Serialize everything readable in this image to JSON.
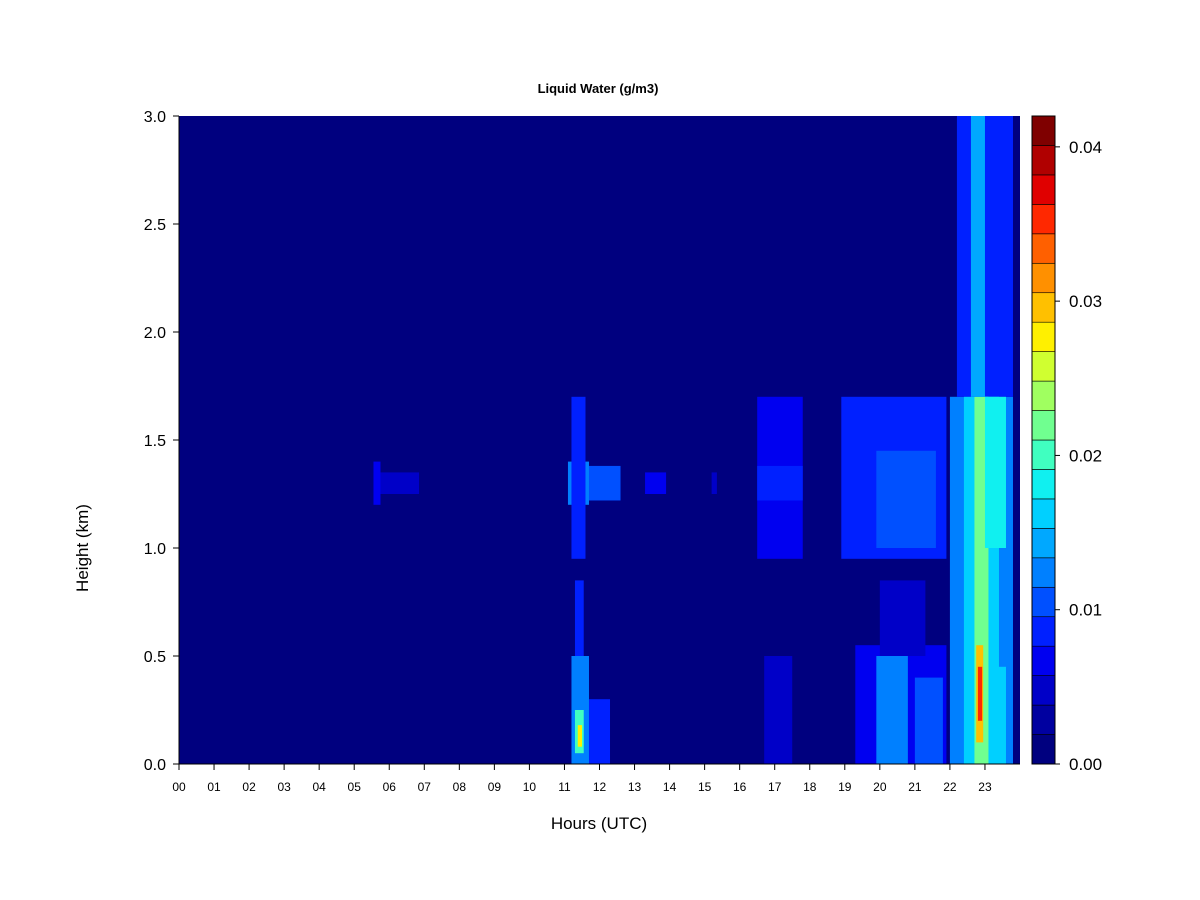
{
  "chart_data": {
    "type": "heatmap",
    "title": "Liquid Water (g/m3)",
    "xlabel": "Hours (UTC)",
    "ylabel": "Height (km)",
    "xlim": [
      0,
      24
    ],
    "ylim": [
      0,
      3.0
    ],
    "x_ticks": [
      "00",
      "01",
      "02",
      "03",
      "04",
      "05",
      "06",
      "07",
      "08",
      "09",
      "10",
      "11",
      "12",
      "13",
      "14",
      "15",
      "16",
      "17",
      "18",
      "19",
      "20",
      "21",
      "22",
      "23"
    ],
    "y_ticks": [
      "0.0",
      "0.5",
      "1.0",
      "1.5",
      "2.0",
      "2.5",
      "3.0"
    ],
    "colorbar": {
      "min": 0.0,
      "max": 0.042,
      "levels": 21,
      "ticks": [
        "0.00",
        "0.01",
        "0.02",
        "0.03",
        "0.04"
      ],
      "colors": [
        "#00007F",
        "#0000A0",
        "#0000C8",
        "#0000F0",
        "#0020FF",
        "#0050FF",
        "#0080FF",
        "#00A8FF",
        "#00D0FF",
        "#10F0F0",
        "#40FFC0",
        "#70FF90",
        "#A0FF60",
        "#D0FF30",
        "#FFF000",
        "#FFC000",
        "#FF9000",
        "#FF6000",
        "#FF2800",
        "#E00000",
        "#B00000",
        "#7F0000"
      ]
    },
    "background_value": 0.0,
    "patches": [
      {
        "x": [
          5.55,
          5.75
        ],
        "y": [
          1.2,
          1.4
        ],
        "value": 0.006
      },
      {
        "x": [
          5.75,
          6.85
        ],
        "y": [
          1.25,
          1.35
        ],
        "value": 0.004
      },
      {
        "x": [
          11.1,
          11.7
        ],
        "y": [
          1.2,
          1.4
        ],
        "value": 0.012
      },
      {
        "x": [
          11.7,
          12.6
        ],
        "y": [
          1.22,
          1.38
        ],
        "value": 0.011
      },
      {
        "x": [
          11.2,
          11.6
        ],
        "y": [
          0.95,
          1.7
        ],
        "value": 0.009
      },
      {
        "x": [
          11.3,
          11.55
        ],
        "y": [
          0.0,
          0.85
        ],
        "value": 0.008
      },
      {
        "x": [
          11.2,
          11.7
        ],
        "y": [
          0.0,
          0.5
        ],
        "value": 0.013
      },
      {
        "x": [
          11.3,
          11.55
        ],
        "y": [
          0.05,
          0.25
        ],
        "value": 0.02
      },
      {
        "x": [
          11.38,
          11.5
        ],
        "y": [
          0.08,
          0.18
        ],
        "value": 0.028
      },
      {
        "x": [
          11.7,
          12.3
        ],
        "y": [
          0.0,
          0.3
        ],
        "value": 0.009
      },
      {
        "x": [
          13.3,
          13.9
        ],
        "y": [
          1.25,
          1.35
        ],
        "value": 0.006
      },
      {
        "x": [
          15.2,
          15.35
        ],
        "y": [
          1.25,
          1.35
        ],
        "value": 0.005
      },
      {
        "x": [
          16.5,
          17.8
        ],
        "y": [
          0.95,
          1.7
        ],
        "value": 0.006
      },
      {
        "x": [
          16.5,
          17.8
        ],
        "y": [
          1.22,
          1.38
        ],
        "value": 0.009
      },
      {
        "x": [
          16.7,
          17.5
        ],
        "y": [
          0.0,
          0.5
        ],
        "value": 0.004
      },
      {
        "x": [
          18.9,
          21.9
        ],
        "y": [
          0.95,
          1.7
        ],
        "value": 0.008
      },
      {
        "x": [
          19.9,
          21.6
        ],
        "y": [
          1.0,
          1.45
        ],
        "value": 0.011
      },
      {
        "x": [
          19.3,
          21.9
        ],
        "y": [
          0.0,
          0.55
        ],
        "value": 0.007
      },
      {
        "x": [
          19.9,
          20.8
        ],
        "y": [
          0.0,
          0.5
        ],
        "value": 0.012
      },
      {
        "x": [
          20.0,
          21.3
        ],
        "y": [
          0.5,
          0.85
        ],
        "value": 0.005
      },
      {
        "x": [
          21.0,
          21.8
        ],
        "y": [
          0.0,
          0.4
        ],
        "value": 0.011
      },
      {
        "x": [
          22.0,
          23.8
        ],
        "y": [
          0.0,
          1.7
        ],
        "value": 0.012
      },
      {
        "x": [
          22.2,
          23.8
        ],
        "y": [
          1.7,
          3.0
        ],
        "value": 0.009
      },
      {
        "x": [
          22.4,
          23.4
        ],
        "y": [
          0.0,
          1.7
        ],
        "value": 0.016
      },
      {
        "x": [
          22.7,
          23.1
        ],
        "y": [
          0.0,
          1.7
        ],
        "value": 0.022
      },
      {
        "x": [
          22.75,
          22.95
        ],
        "y": [
          0.1,
          0.55
        ],
        "value": 0.03
      },
      {
        "x": [
          22.8,
          22.92
        ],
        "y": [
          0.2,
          0.45
        ],
        "value": 0.036
      },
      {
        "x": [
          23.2,
          23.6
        ],
        "y": [
          0.0,
          0.45
        ],
        "value": 0.016
      },
      {
        "x": [
          23.0,
          23.6
        ],
        "y": [
          1.0,
          1.7
        ],
        "value": 0.018
      },
      {
        "x": [
          22.6,
          23.0
        ],
        "y": [
          1.7,
          3.0
        ],
        "value": 0.014
      }
    ]
  }
}
